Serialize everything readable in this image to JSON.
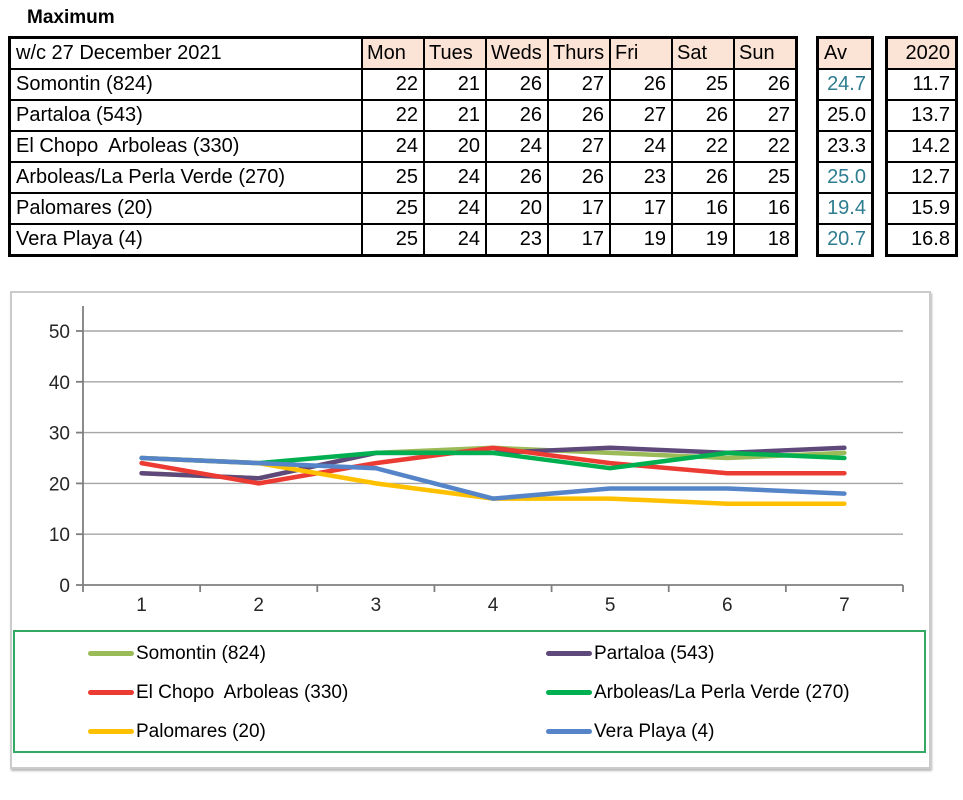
{
  "title": "Maximum",
  "table": {
    "corner_label": "w/c 27 December 2021",
    "day_headers": [
      "Mon",
      "Tues",
      "Weds",
      "Thurs",
      "Fri",
      "Sat",
      "Sun"
    ],
    "av_header": "Av",
    "year_header": "2020"
  },
  "colors": {
    "header_fill": "#FBE3D5",
    "teal_value": "#2E7D90",
    "legend_border": "#33A963",
    "chart_border": "#CBCBCB",
    "axis_line": "#7F7F7F",
    "gridline": "#A6A6A6"
  },
  "chart_data": {
    "type": "line",
    "title": "",
    "xlabel": "",
    "ylabel": "",
    "x_labels": [
      "1",
      "2",
      "3",
      "4",
      "5",
      "6",
      "7"
    ],
    "y_ticks": [
      0,
      10,
      20,
      30,
      40,
      50
    ],
    "ylim": [
      0,
      55
    ],
    "grid": true,
    "legend_position": "bottom",
    "series": [
      {
        "name": "Somontin (824)",
        "color": "#9BBB59",
        "values": [
          22,
          21,
          26,
          27,
          26,
          25,
          26
        ],
        "av": "24.7",
        "av_style": "teal",
        "y2020": "11.7"
      },
      {
        "name": "Partaloa (543)",
        "color": "#5F497A",
        "values": [
          22,
          21,
          26,
          26,
          27,
          26,
          27
        ],
        "av": "25.0",
        "av_style": "black",
        "y2020": "13.7"
      },
      {
        "name": "El Chopo  Arboleas (330)",
        "color": "#EC3B33",
        "values": [
          24,
          20,
          24,
          27,
          24,
          22,
          22
        ],
        "av": "23.3",
        "av_style": "black",
        "y2020": "14.2"
      },
      {
        "name": "Arboleas/La Perla Verde (270)",
        "color": "#00B050",
        "values": [
          25,
          24,
          26,
          26,
          23,
          26,
          25
        ],
        "av": "25.0",
        "av_style": "teal",
        "y2020": "12.7"
      },
      {
        "name": "Palomares (20)",
        "color": "#FFC000",
        "values": [
          25,
          24,
          20,
          17,
          17,
          16,
          16
        ],
        "av": "19.4",
        "av_style": "teal",
        "y2020": "15.9"
      },
      {
        "name": "Vera Playa (4)",
        "color": "#5585C8",
        "values": [
          25,
          24,
          23,
          17,
          19,
          19,
          18
        ],
        "av": "20.7",
        "av_style": "teal",
        "y2020": "16.8"
      }
    ]
  }
}
